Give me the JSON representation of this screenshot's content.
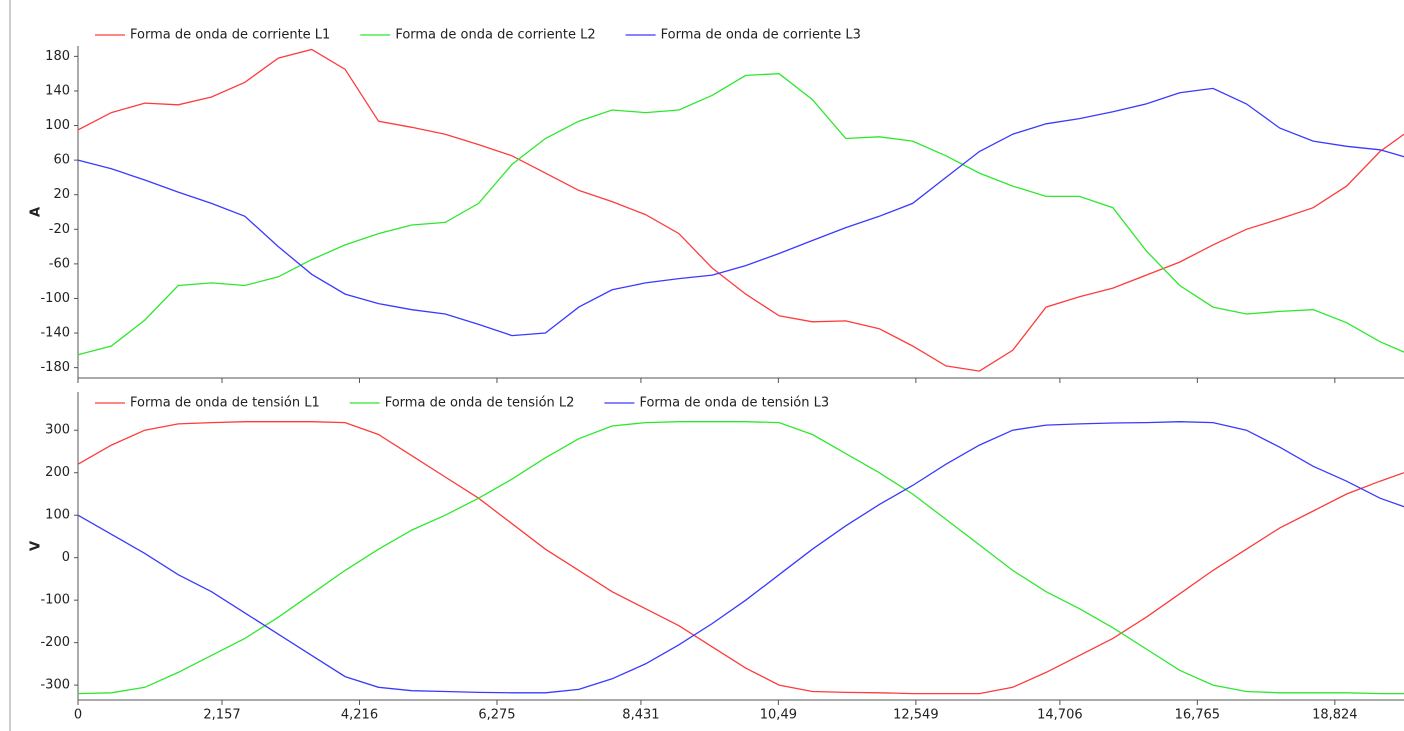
{
  "chart_data": [
    {
      "type": "line",
      "ylabel": "A",
      "x": [
        0,
        0.5,
        1,
        1.5,
        2,
        2.5,
        3,
        3.5,
        4,
        4.5,
        5,
        5.5,
        6,
        6.5,
        7,
        7.5,
        8,
        8.5,
        9,
        9.5,
        10,
        10.5,
        11,
        11.5,
        12,
        12.5,
        13,
        13.5,
        14,
        14.5,
        15,
        15.5,
        16,
        16.5,
        17,
        17.5,
        18,
        18.5,
        19,
        19.5,
        19.86
      ],
      "xlim": [
        0,
        19.86
      ],
      "ylim": [
        -192,
        192
      ],
      "yticks": [
        180,
        140,
        100,
        60,
        20,
        -20,
        -60,
        -100,
        -140,
        -180
      ],
      "series": [
        {
          "name": "Forma de onda de corriente L1",
          "color": "#ff3b3b",
          "values": [
            95,
            115,
            126,
            124,
            133,
            150,
            178,
            188,
            165,
            105,
            98,
            90,
            78,
            65,
            45,
            25,
            12,
            -3,
            -25,
            -65,
            -95,
            -120,
            -127,
            -126,
            -135,
            -155,
            -178,
            -184,
            -160,
            -110,
            -98,
            -88,
            -73,
            -58,
            -38,
            -20,
            -8,
            5,
            30,
            70,
            90
          ]
        },
        {
          "name": "Forma de onda de corriente L2",
          "color": "#2ee82e",
          "values": [
            -165,
            -155,
            -125,
            -85,
            -82,
            -85,
            -75,
            -55,
            -38,
            -25,
            -15,
            -12,
            10,
            55,
            85,
            105,
            118,
            115,
            118,
            135,
            158,
            160,
            130,
            85,
            87,
            82,
            65,
            45,
            30,
            18,
            18,
            5,
            -45,
            -85,
            -110,
            -118,
            -115,
            -113,
            -128,
            -150,
            -162
          ]
        },
        {
          "name": "Forma de onda de corriente L3",
          "color": "#3a3aff",
          "values": [
            60,
            50,
            37,
            23,
            10,
            -5,
            -40,
            -72,
            -95,
            -106,
            -113,
            -118,
            -130,
            -143,
            -140,
            -110,
            -90,
            -82,
            -77,
            -73,
            -62,
            -48,
            -33,
            -18,
            -5,
            10,
            40,
            70,
            90,
            102,
            108,
            116,
            125,
            138,
            143,
            125,
            97,
            82,
            76,
            72,
            64
          ]
        }
      ]
    },
    {
      "type": "line",
      "ylabel": "V",
      "x": [
        0,
        0.5,
        1,
        1.5,
        2,
        2.5,
        3,
        3.5,
        4,
        4.5,
        5,
        5.5,
        6,
        6.5,
        7,
        7.5,
        8,
        8.5,
        9,
        9.5,
        10,
        10.5,
        11,
        11.5,
        12,
        12.5,
        13,
        13.5,
        14,
        14.5,
        15,
        15.5,
        16,
        16.5,
        17,
        17.5,
        18,
        18.5,
        19,
        19.5,
        19.86
      ],
      "xlim": [
        0,
        19.86
      ],
      "ylim": [
        -335,
        390
      ],
      "yticks": [
        300,
        200,
        100,
        0,
        -100,
        -200,
        -300
      ],
      "xticks": [
        0,
        {
          "value": 2.157,
          "label": "2,157"
        },
        {
          "value": 4.216,
          "label": "4,216"
        },
        {
          "value": 6.275,
          "label": "6,275"
        },
        {
          "value": 8.431,
          "label": "8,431"
        },
        {
          "value": 10.49,
          "label": "10,49"
        },
        {
          "value": 12.549,
          "label": "12,549"
        },
        {
          "value": 14.706,
          "label": "14,706"
        },
        {
          "value": 16.765,
          "label": "16,765"
        },
        {
          "value": 18.824,
          "label": "18,824"
        }
      ],
      "series": [
        {
          "name": "Forma de onda de tensión L1",
          "color": "#ff3b3b",
          "values": [
            220,
            265,
            300,
            315,
            318,
            320,
            320,
            320,
            318,
            290,
            240,
            190,
            140,
            80,
            20,
            -30,
            -80,
            -120,
            -160,
            -210,
            -260,
            -300,
            -315,
            -317,
            -318,
            -320,
            -320,
            -320,
            -305,
            -270,
            -230,
            -190,
            -140,
            -85,
            -30,
            20,
            70,
            110,
            150,
            180,
            200
          ]
        },
        {
          "name": "Forma de onda de tensión L2",
          "color": "#2ee82e",
          "values": [
            -320,
            -318,
            -305,
            -270,
            -230,
            -190,
            -140,
            -85,
            -30,
            20,
            65,
            100,
            140,
            185,
            235,
            280,
            310,
            318,
            320,
            320,
            320,
            318,
            290,
            245,
            200,
            150,
            90,
            30,
            -30,
            -80,
            -120,
            -165,
            -215,
            -265,
            -300,
            -315,
            -318,
            -318,
            -318,
            -320,
            -320
          ]
        },
        {
          "name": "Forma de onda de tensión L3",
          "color": "#3a3aff",
          "values": [
            100,
            55,
            10,
            -40,
            -80,
            -130,
            -180,
            -230,
            -280,
            -305,
            -313,
            -315,
            -317,
            -318,
            -318,
            -310,
            -285,
            -250,
            -205,
            -155,
            -100,
            -40,
            20,
            75,
            125,
            170,
            220,
            265,
            300,
            312,
            315,
            317,
            318,
            320,
            318,
            300,
            260,
            215,
            180,
            140,
            120
          ]
        }
      ]
    }
  ]
}
